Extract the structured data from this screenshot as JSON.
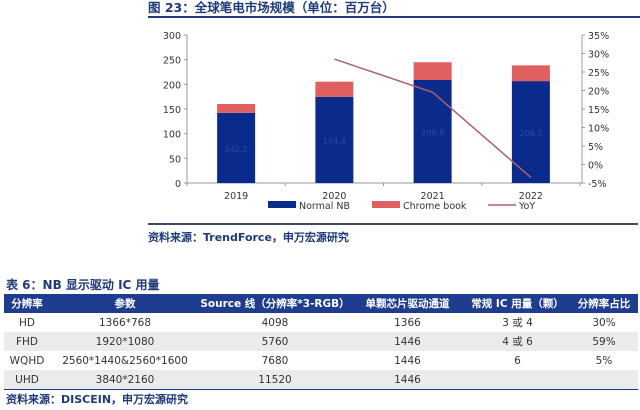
{
  "figure_title": "图 23：全球笔电市场规模（单位：百万台）",
  "figure_source": "资料来源：TrendForce，申万宏源研究",
  "chart_data": {
    "type": "bar",
    "stacked": true,
    "categories": [
      "2019",
      "2020",
      "2021",
      "2022"
    ],
    "series": [
      {
        "name": "Normal NB",
        "type": "bar",
        "axis": "left",
        "color": "#0a2a8c",
        "values": [
          142.2,
          174.4,
          208.8,
          206.5
        ],
        "labels": [
          "142.2",
          "174.4",
          "208.8",
          "206.5"
        ]
      },
      {
        "name": "Chrome book",
        "type": "bar",
        "axis": "left",
        "color": "#e06060",
        "values": [
          18,
          31,
          36,
          32
        ]
      },
      {
        "name": "YoY",
        "type": "line",
        "axis": "right",
        "color": "#b06070",
        "values": [
          null,
          28.5,
          19.5,
          -3.5
        ]
      }
    ],
    "left_axis": {
      "ylim": [
        0,
        300
      ],
      "ticks": [
        "0",
        "50",
        "100",
        "150",
        "200",
        "250",
        "300"
      ]
    },
    "right_axis": {
      "ylim": [
        -5,
        35
      ],
      "ticks": [
        "-5%",
        "0%",
        "5%",
        "10%",
        "15%",
        "20%",
        "25%",
        "30%",
        "35%"
      ]
    },
    "grid": false,
    "legend": "bottom"
  },
  "table": {
    "title": "表 6：NB 显示驱动 IC 用量",
    "headers": [
      "分辨率",
      "参数",
      "Source 线（分辨率*3-RGB）",
      "单颗芯片驱动通道",
      "常规 IC 用量（颗）",
      "分辨率占比"
    ],
    "rows": [
      [
        "HD",
        "1366*768",
        "4098",
        "1366",
        "3 或 4",
        "30%"
      ],
      [
        "FHD",
        "1920*1080",
        "5760",
        "1446",
        "4 或 6",
        "59%"
      ],
      [
        "WQHD",
        "2560*1440&2560*1600",
        "7680",
        "1446",
        "6",
        "5%"
      ],
      [
        "UHD",
        "3840*2160",
        "11520",
        "1446",
        "",
        ""
      ]
    ],
    "source": "资料来源：DISCEIN，申万宏源研究"
  }
}
